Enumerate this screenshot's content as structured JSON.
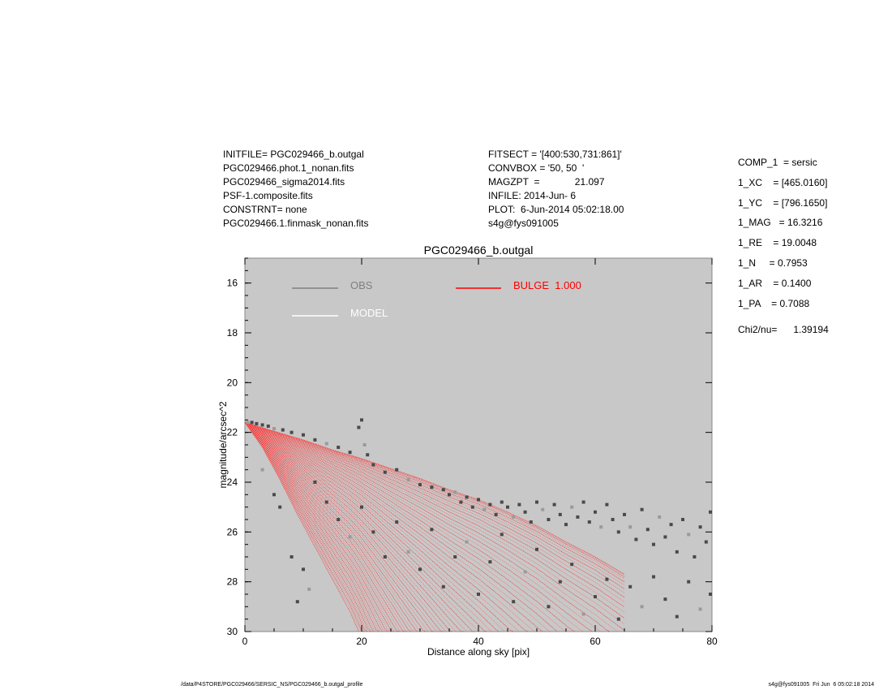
{
  "header_left": [
    "INITFILE= PGC029466_b.outgal",
    "PGC029466.phot.1_nonan.fits",
    "PGC029466_sigma2014.fits",
    "PSF-1.composite.fits",
    "CONSTRNT= none",
    "PGC029466.1.finmask_nonan.fits"
  ],
  "header_mid": [
    "FITSECT = '[400:530,731:861]'",
    "CONVBOX = '50, 50  '",
    "MAGZPT  =             21.097",
    "INFILE: 2014-Jun- 6",
    "PLOT:  6-Jun-2014 05:02:18.00",
    "s4g@fys091005"
  ],
  "params": [
    "COMP_1  = sersic",
    "1_XC    = [465.0160]",
    "1_YC    = [796.1650]",
    "1_MAG   = 16.3216",
    "1_RE    = 19.0048",
    "1_N     = 0.7953",
    "1_AR    = 0.1400",
    "1_PA    = 0.7088"
  ],
  "chi2": "Chi2/nu=      1.39194",
  "footer_left": "/data/P4STORE/PGC029466/SERSIC_NS/PGC029466_b.outgal_profile",
  "footer_right": "s4g@fys091005  Fri Jun  6 05:02:18 2014",
  "colors": {
    "background_plot": "#c8c8c8",
    "obs": "#4a4a4a",
    "model": "#ffffff",
    "bulge": "#ff0000"
  },
  "chart_data": {
    "type": "scatter",
    "title": "PGC029466_b.outgal",
    "xlabel": "Distance along sky [pix]",
    "ylabel": "magnitude/arcsec^2",
    "xlim": [
      0,
      80
    ],
    "ylim": [
      30,
      15
    ],
    "y_reversed": true,
    "xticks": [
      "0",
      "20",
      "40",
      "60",
      "80"
    ],
    "yticks": [
      "16",
      "18",
      "20",
      "22",
      "24",
      "26",
      "28",
      "30"
    ],
    "grid": false,
    "legend": [
      {
        "name": "OBS",
        "color": "#808080"
      },
      {
        "name": "MODEL",
        "color": "#ffffff"
      },
      {
        "name": "BULGE  1.000",
        "color": "#ff0000"
      }
    ],
    "bulge_model": {
      "upper_envelope": [
        [
          0,
          21.6
        ],
        [
          5,
          21.95
        ],
        [
          10,
          22.3
        ],
        [
          15,
          22.7
        ],
        [
          20,
          23.05
        ],
        [
          25,
          23.45
        ],
        [
          30,
          23.85
        ],
        [
          35,
          24.3
        ],
        [
          40,
          24.7
        ],
        [
          45,
          25.2
        ],
        [
          50,
          25.75
        ],
        [
          55,
          26.4
        ],
        [
          60,
          27.0
        ],
        [
          65,
          27.7
        ]
      ],
      "lower_envelope": [
        [
          0,
          21.6
        ],
        [
          3,
          22.6
        ],
        [
          6,
          23.9
        ],
        [
          9,
          25.3
        ],
        [
          12,
          26.6
        ],
        [
          15,
          27.9
        ],
        [
          18,
          29.2
        ],
        [
          19.5,
          30
        ]
      ],
      "max_x": 65
    },
    "obs_points": [
      [
        0.5,
        21.6
      ],
      [
        1.2,
        21.6
      ],
      [
        2,
        21.65
      ],
      [
        3,
        21.7
      ],
      [
        4,
        21.75
      ],
      [
        5,
        21.85
      ],
      [
        6.5,
        21.9
      ],
      [
        8,
        22.0
      ],
      [
        10,
        22.1
      ],
      [
        12,
        22.3
      ],
      [
        14,
        22.45
      ],
      [
        16,
        22.6
      ],
      [
        18,
        22.8
      ],
      [
        20,
        21.5
      ],
      [
        19.5,
        21.8
      ],
      [
        20.5,
        22.5
      ],
      [
        21,
        22.9
      ],
      [
        22,
        23.3
      ],
      [
        24,
        23.6
      ],
      [
        26,
        23.5
      ],
      [
        28,
        23.9
      ],
      [
        30,
        24.1
      ],
      [
        32,
        24.2
      ],
      [
        34,
        24.3
      ],
      [
        35,
        24.5
      ],
      [
        36,
        24.4
      ],
      [
        37,
        24.8
      ],
      [
        38,
        24.6
      ],
      [
        39,
        25.0
      ],
      [
        40,
        24.7
      ],
      [
        41,
        25.1
      ],
      [
        42,
        24.9
      ],
      [
        43,
        25.3
      ],
      [
        44,
        24.8
      ],
      [
        45,
        25.0
      ],
      [
        46,
        25.4
      ],
      [
        47,
        24.9
      ],
      [
        48,
        25.2
      ],
      [
        49,
        25.6
      ],
      [
        50,
        24.8
      ],
      [
        51,
        25.1
      ],
      [
        52,
        25.5
      ],
      [
        53,
        24.9
      ],
      [
        54,
        25.3
      ],
      [
        55,
        25.7
      ],
      [
        56,
        25.0
      ],
      [
        57,
        25.4
      ],
      [
        58,
        24.8
      ],
      [
        59,
        25.6
      ],
      [
        60,
        25.2
      ],
      [
        61,
        25.8
      ],
      [
        62,
        24.9
      ],
      [
        63,
        25.5
      ],
      [
        64,
        26.0
      ],
      [
        65,
        25.3
      ],
      [
        66,
        25.8
      ],
      [
        67,
        26.3
      ],
      [
        68,
        25.1
      ],
      [
        69,
        25.9
      ],
      [
        70,
        26.5
      ],
      [
        71,
        25.4
      ],
      [
        72,
        26.2
      ],
      [
        73,
        25.7
      ],
      [
        74,
        26.8
      ],
      [
        75,
        25.5
      ],
      [
        76,
        26.1
      ],
      [
        77,
        27.0
      ],
      [
        78,
        25.8
      ],
      [
        79,
        26.4
      ],
      [
        80,
        25.2
      ],
      [
        3,
        23.5
      ],
      [
        5,
        24.5
      ],
      [
        6,
        25.0
      ],
      [
        8,
        27.0
      ],
      [
        10,
        27.5
      ],
      [
        11,
        28.3
      ],
      [
        9,
        28.8
      ],
      [
        12,
        24.0
      ],
      [
        14,
        24.8
      ],
      [
        16,
        25.5
      ],
      [
        18,
        26.2
      ],
      [
        20,
        25.0
      ],
      [
        22,
        26.0
      ],
      [
        24,
        27.0
      ],
      [
        26,
        25.6
      ],
      [
        28,
        26.8
      ],
      [
        30,
        27.5
      ],
      [
        32,
        25.9
      ],
      [
        34,
        28.2
      ],
      [
        36,
        27.0
      ],
      [
        38,
        26.4
      ],
      [
        40,
        28.5
      ],
      [
        42,
        27.2
      ],
      [
        44,
        26.1
      ],
      [
        46,
        28.8
      ],
      [
        48,
        27.6
      ],
      [
        50,
        26.7
      ],
      [
        52,
        29.0
      ],
      [
        54,
        28.0
      ],
      [
        56,
        27.3
      ],
      [
        58,
        29.3
      ],
      [
        60,
        28.6
      ],
      [
        62,
        27.9
      ],
      [
        64,
        29.5
      ],
      [
        66,
        28.2
      ],
      [
        68,
        29.0
      ],
      [
        70,
        27.8
      ],
      [
        72,
        28.7
      ],
      [
        74,
        29.4
      ],
      [
        76,
        28.0
      ],
      [
        78,
        29.1
      ],
      [
        80,
        28.5
      ]
    ]
  }
}
